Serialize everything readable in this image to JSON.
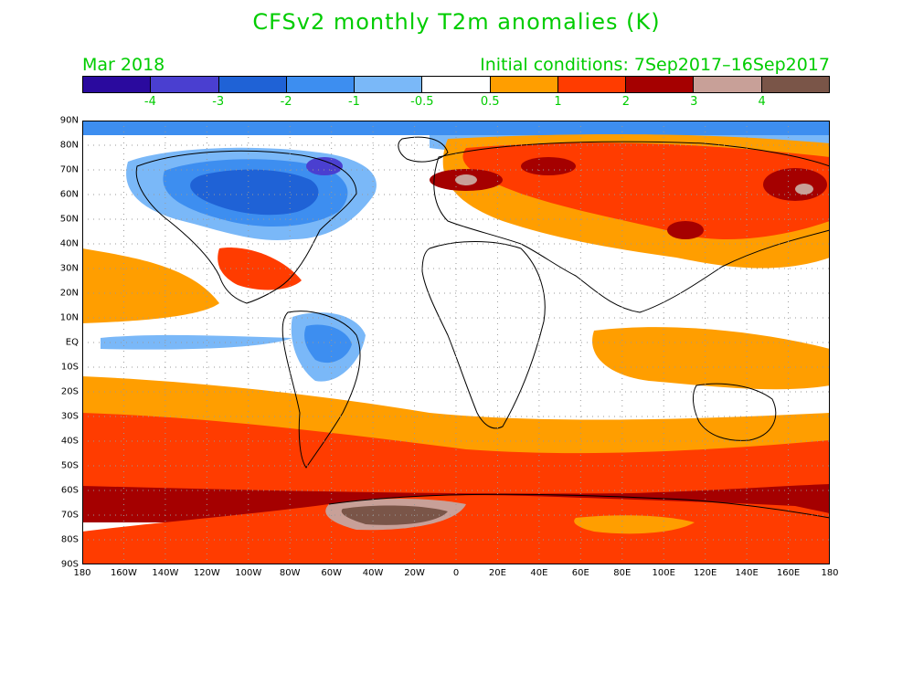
{
  "title": "CFSv2 monthly T2m anomalies (K)",
  "subtitle_left": "Mar 2018",
  "subtitle_right": "Initial conditions: 7Sep2017–16Sep2017",
  "colorbar": {
    "colors": [
      "#2a0a9e",
      "#4a3fd0",
      "#1f62d6",
      "#3d8ef0",
      "#7ab8f8",
      "#ffffff",
      "#ff9e00",
      "#ff3c00",
      "#a50000",
      "#c8a098",
      "#7a5548"
    ],
    "labels": [
      "-4",
      "-3",
      "-2",
      "-1",
      "-0.5",
      "0.5",
      "1",
      "2",
      "3",
      "4"
    ]
  },
  "lat_labels": [
    "90N",
    "80N",
    "70N",
    "60N",
    "50N",
    "40N",
    "30N",
    "20N",
    "10N",
    "EQ",
    "10S",
    "20S",
    "30S",
    "40S",
    "50S",
    "60S",
    "70S",
    "80S",
    "90S"
  ],
  "lon_labels": [
    "180",
    "160W",
    "140W",
    "120W",
    "100W",
    "80W",
    "60W",
    "40W",
    "20W",
    "0",
    "20E",
    "40E",
    "60E",
    "80E",
    "100E",
    "120E",
    "140E",
    "160E",
    "180"
  ]
}
